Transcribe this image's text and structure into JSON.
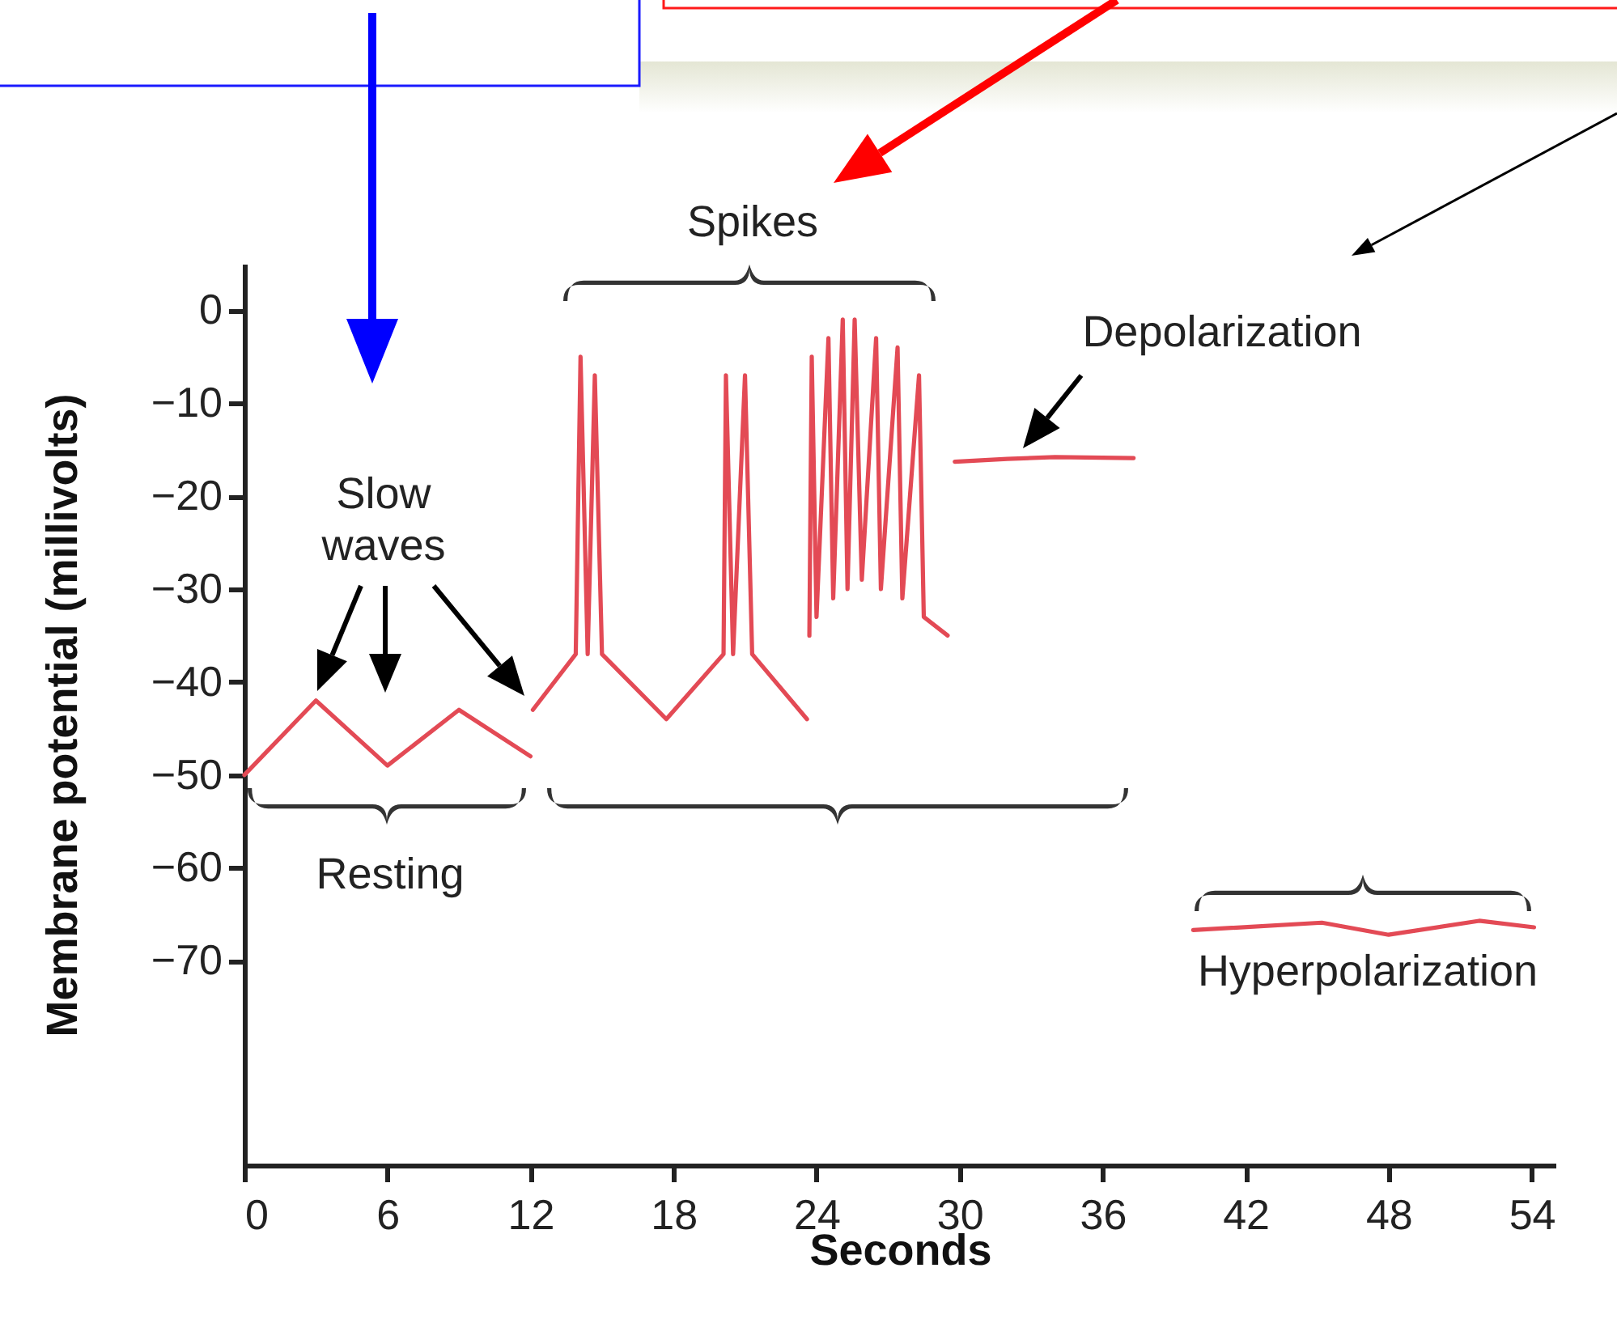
{
  "chart_data": {
    "type": "line",
    "xlabel": "Seconds",
    "ylabel": "Membrane potential (millivolts)",
    "xlim": [
      0,
      55
    ],
    "ylim": [
      -92,
      5
    ],
    "xticks": [
      0,
      6,
      12,
      18,
      24,
      30,
      36,
      42,
      48,
      54
    ],
    "yticks": [
      0,
      -10,
      -20,
      -30,
      -40,
      -50,
      -60,
      -70
    ],
    "grid": false,
    "legend": false,
    "marker": "none",
    "line_style": "solid",
    "series": [
      {
        "color": "#e34a55",
        "x": [
          0,
          3,
          6,
          9,
          12
        ],
        "values": [
          -50,
          -42,
          -49,
          -43,
          -48
        ]
      },
      {
        "color": "#e34a55",
        "x": [
          12.1,
          13.9,
          14.1,
          14.4,
          14.7,
          15.0,
          17.7,
          20.1,
          20.2,
          20.5,
          21.0,
          21.3,
          23.6
        ],
        "values": [
          -43,
          -37,
          -5,
          -37,
          -7,
          -37,
          -44,
          -37,
          -7,
          -37,
          -7,
          -37,
          -44
        ]
      },
      {
        "color": "#e34a55",
        "x": [
          23.7,
          23.8,
          24.0,
          24.5,
          24.7,
          25.1,
          25.3,
          25.6,
          25.9,
          26.5,
          26.7,
          27.4,
          27.6,
          28.3,
          28.5,
          29.5
        ],
        "values": [
          -35,
          -5,
          -33,
          -3,
          -31,
          -1,
          -30,
          -1,
          -29,
          -3,
          -30,
          -4,
          -31,
          -7,
          -33,
          -35
        ]
      },
      {
        "color": "#e34a55",
        "x": [
          29.8,
          32,
          34,
          37.3
        ],
        "values": [
          -16.3,
          -16,
          -15.8,
          -15.9
        ]
      },
      {
        "color": "#e34a55",
        "x": [
          39.8,
          45.2,
          48,
          51.8,
          54.1
        ],
        "values": [
          -66.7,
          -65.9,
          -67.2,
          -65.7,
          -66.4
        ]
      }
    ],
    "annotations": [
      "Spikes",
      "Slow waves",
      "Depolarization",
      "Resting",
      "Hyperpolarization"
    ]
  }
}
